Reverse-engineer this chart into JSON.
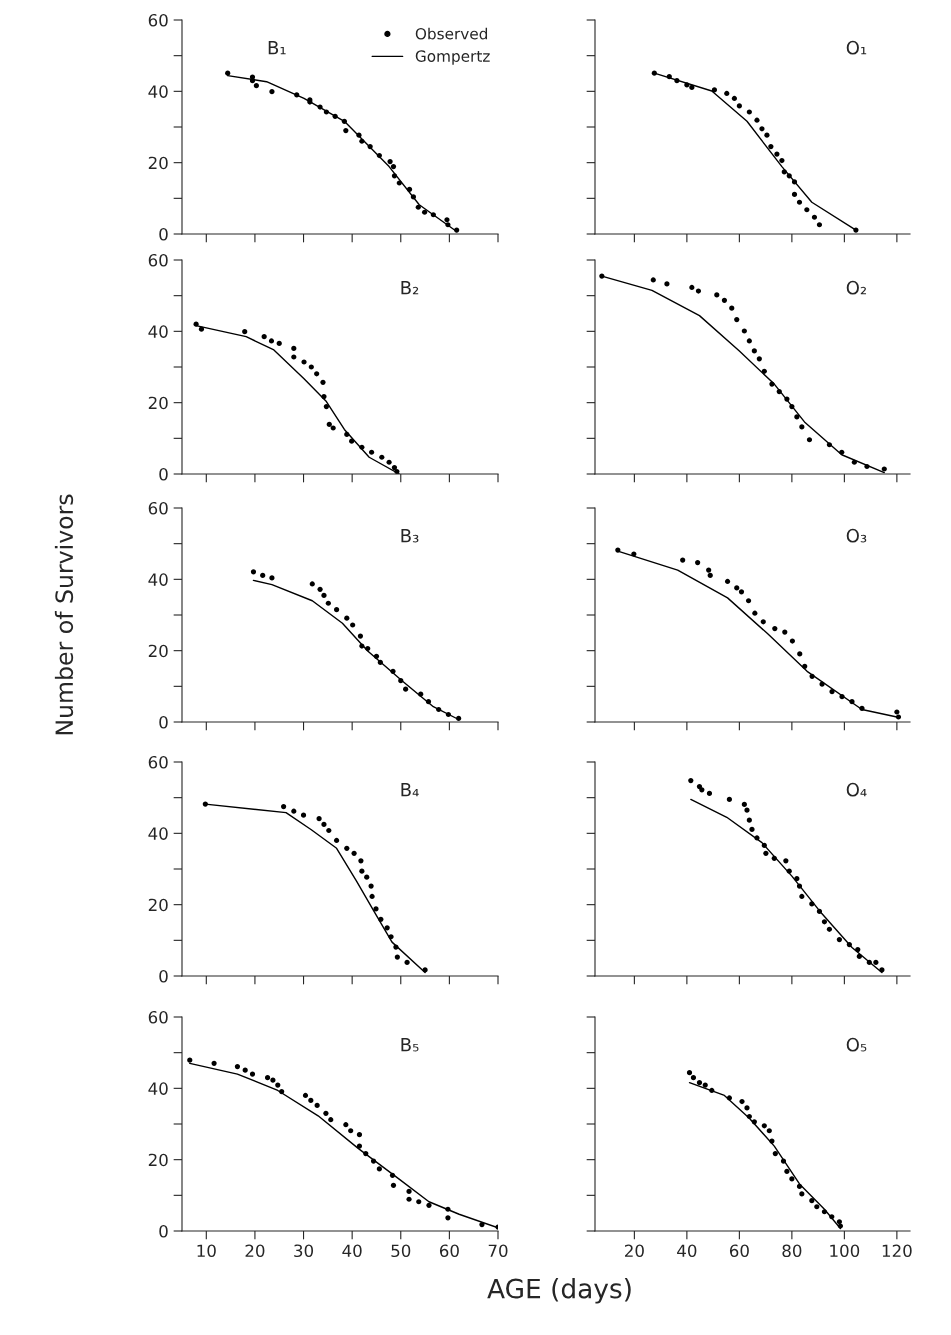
{
  "chart_data": [
    {
      "type": "scatter",
      "title": "B₁",
      "xlim": [
        5,
        70
      ],
      "xticks": [
        10,
        20,
        30,
        40,
        50,
        60,
        70
      ],
      "ylim": [
        0,
        60
      ],
      "yticks": [
        0,
        {
          "value": 10,
          "label": null
        },
        20,
        {
          "value": 30,
          "label": null
        },
        40,
        {
          "value": 50,
          "label": null
        },
        60
      ],
      "tick_labels": "y",
      "legend": "top right",
      "series": [
        {
          "name": "Observed",
          "color": "#000000",
          "marker": "circle",
          "x": [
            14.4,
            19.5,
            19.5,
            20.3,
            23.5,
            28.6,
            31.3,
            31.3,
            33.4,
            34.7,
            36.5,
            38.4,
            38.7,
            41.4,
            42,
            43.7,
            45.6,
            47.8,
            48.5,
            48.7,
            49.7,
            51.8,
            52.6,
            53.6,
            54.9,
            56.7,
            59.5,
            59.7,
            61.5
          ],
          "values": [
            45.1,
            44,
            43,
            41.6,
            39.9,
            39,
            37.6,
            37,
            35.6,
            34.2,
            33,
            31.6,
            29,
            27.7,
            26,
            24.5,
            22,
            20.3,
            18.9,
            16.3,
            14.3,
            12.5,
            10.4,
            7.5,
            6.1,
            5.4,
            4,
            2.6,
            1.1
          ]
        },
        {
          "name": "Gompertz",
          "type": "line",
          "color": "#000000",
          "x": [
            14.4,
            22.4,
            30.1,
            38.4,
            47.6,
            53.8,
            61.5
          ],
          "values": [
            44.4,
            42.7,
            38,
            31.6,
            18.9,
            8.2,
            0.7
          ]
        }
      ]
    },
    {
      "type": "scatter",
      "title": "O₁",
      "xlim": [
        5,
        125
      ],
      "xticks": [
        20,
        40,
        60,
        80,
        100,
        120
      ],
      "ylim": [
        0,
        60
      ],
      "yticks": [
        0,
        {
          "value": 10,
          "label": null
        },
        20,
        {
          "value": 30,
          "label": null
        },
        40,
        {
          "value": 50,
          "label": null
        },
        60
      ],
      "tick_labels": false,
      "series": [
        {
          "type": "scatter",
          "color": "#000000",
          "marker": "circle",
          "x": [
            27.6,
            33.3,
            36.2,
            40,
            41.9,
            50.5,
            55.2,
            58.1,
            60,
            63.8,
            66.7,
            68.6,
            70.5,
            72,
            74.3,
            76.2,
            77.1,
            79,
            81,
            81,
            82.9,
            85.7,
            88.6,
            90.5,
            104.4
          ],
          "values": [
            45.1,
            44.1,
            43,
            41.8,
            41.1,
            40.4,
            39.4,
            38,
            35.9,
            34.2,
            31.9,
            29.5,
            27.7,
            24.5,
            22.4,
            20.6,
            17.4,
            16.3,
            14.6,
            11.1,
            8.9,
            6.8,
            4.7,
            2.6,
            1.1
          ]
        },
        {
          "type": "line",
          "color": "#000000",
          "x": [
            27.6,
            49.5,
            62.9,
            76.2,
            87.6,
            104.4
          ],
          "values": [
            45.1,
            40.1,
            31.6,
            18.9,
            8.9,
            1.1
          ]
        }
      ]
    },
    {
      "type": "scatter",
      "title": "B₂",
      "xlim": [
        5,
        70
      ],
      "xticks": [
        10,
        20,
        30,
        40,
        50,
        60,
        70
      ],
      "ylim": [
        0,
        60
      ],
      "yticks": [
        0,
        {
          "value": 10,
          "label": null
        },
        20,
        {
          "value": 30,
          "label": null
        },
        40,
        {
          "value": 50,
          "label": null
        },
        60
      ],
      "tick_labels": "y",
      "series": [
        {
          "type": "scatter",
          "color": "#000000",
          "marker": "circle",
          "x": [
            7.9,
            9,
            17.9,
            21.9,
            23.4,
            25,
            28,
            28,
            30.1,
            31.6,
            32.7,
            34,
            34.2,
            34.7,
            35.3,
            36.1,
            38.9,
            39.9,
            42,
            44,
            46.1,
            47.6,
            48.7,
            49.2
          ],
          "values": [
            42,
            40.6,
            39.9,
            38.5,
            37.3,
            36.6,
            35.2,
            32.8,
            31.4,
            30,
            28.1,
            25.7,
            21.7,
            18.9,
            13.9,
            12.9,
            11.1,
            9.2,
            7.5,
            6.1,
            4.7,
            3.3,
            1.8,
            0.7
          ]
        },
        {
          "type": "line",
          "color": "#000000",
          "x": [
            7.9,
            18.2,
            23.9,
            30.1,
            34.7,
            38.4,
            43.5,
            49.7
          ],
          "values": [
            41.6,
            38.5,
            34.8,
            26.7,
            20.3,
            12.5,
            4.7,
            0
          ]
        }
      ]
    },
    {
      "type": "scatter",
      "title": "O₂",
      "xlim": [
        5,
        125
      ],
      "xticks": [
        20,
        40,
        60,
        80,
        100,
        120
      ],
      "ylim": [
        0,
        60
      ],
      "yticks": [
        0,
        {
          "value": 10,
          "label": null
        },
        20,
        {
          "value": 30,
          "label": null
        },
        40,
        {
          "value": 50,
          "label": null
        },
        60
      ],
      "tick_labels": false,
      "series": [
        {
          "type": "scatter",
          "color": "#000000",
          "marker": "circle",
          "x": [
            7.6,
            27.2,
            32.4,
            41.9,
            44.4,
            51.4,
            54.3,
            57.1,
            59,
            61.9,
            63.8,
            65.7,
            67.6,
            69.5,
            72.4,
            75.2,
            78.1,
            80,
            81.9,
            83.8,
            86.7,
            94.3,
            99,
            103.8,
            108.6,
            115.2
          ],
          "values": [
            55.5,
            54.4,
            53.3,
            52.3,
            51.3,
            50.2,
            48.7,
            46.5,
            43.3,
            40.1,
            37.3,
            34.5,
            32.3,
            28.8,
            25.2,
            23.1,
            21,
            18.9,
            16,
            13.2,
            9.6,
            8.2,
            6.1,
            3.3,
            2.1,
            1.4
          ]
        },
        {
          "type": "line",
          "color": "#000000",
          "x": [
            7.6,
            26.7,
            44.8,
            60,
            73.3,
            84.8,
            99,
            115.2
          ],
          "values": [
            55.5,
            51.5,
            44.4,
            34.5,
            25.2,
            14.6,
            5.4,
            0.4
          ]
        }
      ]
    },
    {
      "type": "scatter",
      "title": "B₃",
      "ylabel": "Number of Survivors",
      "xlim": [
        5,
        70
      ],
      "xticks": [
        10,
        20,
        30,
        40,
        50,
        60,
        70
      ],
      "ylim": [
        0,
        60
      ],
      "yticks": [
        0,
        {
          "value": 10,
          "label": null
        },
        20,
        {
          "value": 30,
          "label": null
        },
        40,
        {
          "value": 50,
          "label": null
        },
        60
      ],
      "tick_labels": "y",
      "series": [
        {
          "type": "scatter",
          "color": "#000000",
          "marker": "circle",
          "x": [
            19.7,
            21.6,
            23.5,
            31.8,
            33.4,
            34.2,
            35.1,
            36.8,
            38.9,
            40.1,
            41.7,
            42,
            43.2,
            45,
            45.8,
            48.4,
            50,
            51,
            54.1,
            55.7,
            57.8,
            59.8,
            61.9
          ],
          "values": [
            42.1,
            41.1,
            40.4,
            38.7,
            37.2,
            35.5,
            33.3,
            31.5,
            29.1,
            27.2,
            24.1,
            21.3,
            20.6,
            18.4,
            16.7,
            14.2,
            11.6,
            9.2,
            7.8,
            5.7,
            3.5,
            2.1,
            1
          ]
        },
        {
          "type": "line",
          "color": "#000000",
          "x": [
            19.7,
            23.5,
            31.8,
            38,
            43.2,
            50.5,
            56.7,
            61.9
          ],
          "values": [
            39.7,
            38.5,
            34,
            27.7,
            19.9,
            11.3,
            4.3,
            0.7
          ]
        }
      ]
    },
    {
      "type": "scatter",
      "title": "O₃",
      "xlim": [
        5,
        125
      ],
      "xticks": [
        20,
        40,
        60,
        80,
        100,
        120
      ],
      "ylim": [
        0,
        60
      ],
      "yticks": [
        0,
        {
          "value": 10,
          "label": null
        },
        20,
        {
          "value": 30,
          "label": null
        },
        40,
        {
          "value": 50,
          "label": null
        },
        60
      ],
      "tick_labels": false,
      "series": [
        {
          "type": "scatter",
          "color": "#000000",
          "marker": "circle",
          "x": [
            13.7,
            19.8,
            38.4,
            44.1,
            48.3,
            48.9,
            55.5,
            59,
            60.8,
            63.5,
            65.9,
            69.1,
            73.5,
            77.3,
            80.2,
            83,
            84.9,
            87.7,
            91.5,
            95.3,
            99.1,
            102.9,
            106.7,
            120,
            120.6
          ],
          "values": [
            48.2,
            47.1,
            45.4,
            44.7,
            42.6,
            41.1,
            39.4,
            37.6,
            36.5,
            34,
            30.5,
            28.1,
            26.2,
            25.2,
            22.7,
            19.1,
            15.6,
            12.8,
            10.6,
            8.5,
            7.1,
            5.7,
            3.8,
            2.8,
            1.4
          ]
        },
        {
          "type": "line",
          "color": "#000000",
          "x": [
            13.7,
            36.5,
            55.5,
            70.7,
            85.8,
            106.7,
            120
          ],
          "values": [
            47.9,
            42.6,
            34.8,
            24.8,
            14.2,
            3.5,
            1.4
          ]
        }
      ]
    },
    {
      "type": "scatter",
      "title": "B₄",
      "xlim": [
        5,
        70
      ],
      "xticks": [
        10,
        20,
        30,
        40,
        50,
        60,
        70
      ],
      "ylim": [
        0,
        60
      ],
      "yticks": [
        0,
        {
          "value": 10,
          "label": null
        },
        20,
        {
          "value": 30,
          "label": null
        },
        40,
        {
          "value": 50,
          "label": null
        },
        60
      ],
      "tick_labels": "y",
      "series": [
        {
          "type": "scatter",
          "color": "#000000",
          "marker": "circle",
          "x": [
            9.8,
            25.9,
            28,
            30,
            33.2,
            34.2,
            35.2,
            36.8,
            38.9,
            40.4,
            41.8,
            42,
            43,
            43.9,
            44.1,
            44.9,
            45.9,
            47.2,
            48,
            49,
            49.3,
            51.3,
            55
          ],
          "values": [
            48.2,
            47.5,
            46.2,
            45.1,
            44.1,
            42.5,
            40.8,
            38,
            35.8,
            34.4,
            32.3,
            29.4,
            27.7,
            25.2,
            22.3,
            18.8,
            15.9,
            13.5,
            11,
            8.1,
            5.3,
            3.8,
            1.7
          ]
        },
        {
          "type": "line",
          "color": "#000000",
          "x": [
            9.8,
            26.4,
            31.6,
            36.8,
            40.9,
            44.5,
            48.2,
            55
          ],
          "values": [
            48.2,
            45.8,
            41,
            35.8,
            26.6,
            18.1,
            9.5,
            1
          ]
        }
      ]
    },
    {
      "type": "scatter",
      "title": "O₄",
      "xlim": [
        5,
        125
      ],
      "xticks": [
        20,
        40,
        60,
        80,
        100,
        120
      ],
      "ylim": [
        0,
        60
      ],
      "yticks": [
        0,
        {
          "value": 10,
          "label": null
        },
        20,
        {
          "value": 30,
          "label": null
        },
        40,
        {
          "value": 50,
          "label": null
        },
        60
      ],
      "tick_labels": false,
      "series": [
        {
          "type": "scatter",
          "color": "#000000",
          "marker": "circle",
          "x": [
            41.5,
            44.8,
            45.7,
            48.6,
            56.2,
            61.9,
            62.9,
            63.8,
            64.8,
            66.7,
            69.5,
            70.1,
            73.3,
            77.7,
            79,
            81.9,
            82.9,
            83.8,
            87.6,
            90.5,
            92.4,
            94.3,
            98.1,
            101.9,
            105.1,
            105.7,
            109.5,
            112,
            114.3
          ],
          "values": [
            54.8,
            53.1,
            52.2,
            51.2,
            49.5,
            48.1,
            46.5,
            43.7,
            41.1,
            38.7,
            36.6,
            34.4,
            33,
            32.3,
            29.4,
            27.3,
            25.2,
            22.3,
            20.2,
            18.1,
            15.2,
            13.1,
            10.2,
            8.8,
            7.4,
            5.5,
            3.8,
            3.8,
            1.7
          ]
        },
        {
          "type": "line",
          "color": "#000000",
          "x": [
            41.5,
            55.2,
            68.6,
            80,
            91.4,
            102.9,
            114.3
          ],
          "values": [
            49.5,
            44.5,
            37.4,
            28,
            17.5,
            8,
            1
          ]
        }
      ]
    },
    {
      "type": "scatter",
      "title": "B₅",
      "xlabel": "AGE (days)",
      "xlim": [
        5,
        70
      ],
      "xticks": [
        10,
        20,
        30,
        40,
        50,
        60,
        70
      ],
      "ylim": [
        0,
        60
      ],
      "yticks": [
        0,
        {
          "value": 10,
          "label": null
        },
        20,
        {
          "value": 30,
          "label": null
        },
        40,
        {
          "value": 50,
          "label": null
        },
        60
      ],
      "series": [
        {
          "type": "scatter",
          "color": "#000000",
          "marker": "circle",
          "x": [
            6.6,
            11.6,
            16.4,
            18,
            19.5,
            22.6,
            23.7,
            24.7,
            25.5,
            30.4,
            31.5,
            32.8,
            34.6,
            35.6,
            38.7,
            39.7,
            41.5,
            41.5,
            42.8,
            44.4,
            45.6,
            48.3,
            48.5,
            51.7,
            51.7,
            53.7,
            55.8,
            59.7,
            59.7,
            66.7,
            70
          ],
          "values": [
            47.9,
            47,
            46.1,
            45.1,
            44,
            43,
            42.3,
            40.9,
            39.1,
            38,
            36.6,
            35.2,
            33,
            31.2,
            29.8,
            28.1,
            27,
            23.8,
            21.7,
            19.6,
            17.4,
            15.6,
            12.8,
            11.1,
            8.9,
            8.2,
            7.2,
            6.1,
            3.7,
            1.8,
            1.1
          ]
        },
        {
          "type": "line",
          "color": "#000000",
          "x": [
            6.6,
            16.4,
            24.7,
            33,
            41.3,
            49.6,
            55.8,
            62,
            70
          ],
          "values": [
            47,
            44,
            39.4,
            32.3,
            23.1,
            14.6,
            8.2,
            4.7,
            0.9
          ]
        }
      ]
    },
    {
      "type": "scatter",
      "title": "O₅",
      "xlim": [
        5,
        125
      ],
      "xticks": [
        20,
        40,
        60,
        80,
        100,
        120
      ],
      "ylim": [
        0,
        60
      ],
      "yticks": [
        0,
        {
          "value": 10,
          "label": null
        },
        20,
        {
          "value": 30,
          "label": null
        },
        40,
        {
          "value": 50,
          "label": null
        },
        60
      ],
      "tick_labels": "x",
      "series": [
        {
          "type": "scatter",
          "color": "#000000",
          "marker": "circle",
          "x": [
            41,
            42.5,
            44.8,
            47,
            49.5,
            56.2,
            61,
            62.9,
            63.8,
            65.7,
            69.5,
            71.4,
            72.4,
            73.7,
            76.8,
            78.1,
            80,
            82.9,
            83.8,
            87.6,
            89.5,
            92.4,
            95.2,
            98.1,
            98.5
          ],
          "values": [
            44.4,
            43,
            41.6,
            40.9,
            39.4,
            37.3,
            36.3,
            34.5,
            32.1,
            30.6,
            29.5,
            28.1,
            25.2,
            21.7,
            19.6,
            16.7,
            14.6,
            12.5,
            10.4,
            8.5,
            6.8,
            5.4,
            4,
            2.6,
            1.4
          ]
        },
        {
          "type": "line",
          "color": "#000000",
          "x": [
            41,
            54.3,
            63.8,
            73.3,
            82.9,
            92.4,
            98.5
          ],
          "values": [
            41.6,
            38,
            31.6,
            23.8,
            13.2,
            6.1,
            0.7
          ]
        }
      ]
    }
  ]
}
